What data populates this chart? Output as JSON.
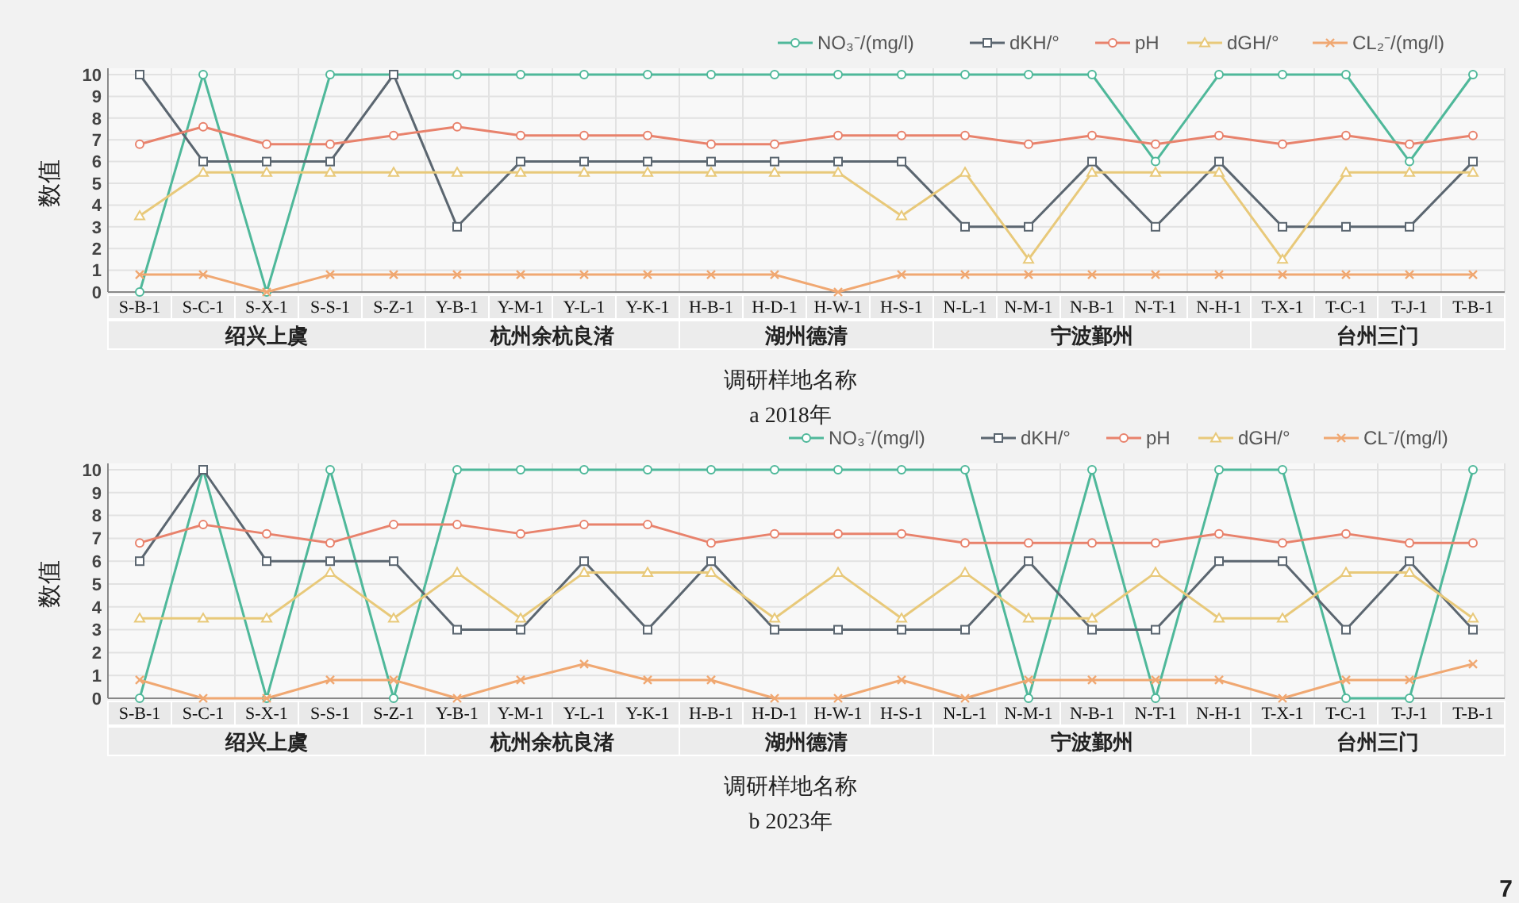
{
  "chart_data": [
    {
      "type": "line",
      "title": "a  2018年",
      "xlabel": "调研样地名称",
      "ylabel": "数值",
      "categories": [
        "S-B-1",
        "S-C-1",
        "S-X-1",
        "S-S-1",
        "S-Z-1",
        "Y-B-1",
        "Y-M-1",
        "Y-L-1",
        "Y-K-1",
        "H-B-1",
        "H-D-1",
        "H-W-1",
        "H-S-1",
        "N-L-1",
        "N-M-1",
        "N-B-1",
        "N-T-1",
        "N-H-1",
        "T-X-1",
        "T-C-1",
        "T-J-1",
        "T-B-1"
      ],
      "ylim": [
        0,
        10
      ],
      "yticks": [
        0,
        1,
        2,
        3,
        4,
        5,
        6,
        7,
        8,
        9,
        10
      ],
      "grid": true,
      "legend": "top right",
      "annotations": [
        "绍兴上虞",
        "杭州余杭良渚",
        "湖州德清",
        "宁波鄞州",
        "台州三门"
      ],
      "series": [
        {
          "name": "NO₃⁻/(mg/l)",
          "color": "#4fb89a",
          "marker": "circle",
          "values": [
            0,
            10,
            0,
            10,
            10,
            10,
            10,
            10,
            10,
            10,
            10,
            10,
            10,
            10,
            10,
            10,
            6,
            10,
            10,
            10,
            6,
            10
          ]
        },
        {
          "name": "dKH/°",
          "color": "#5b6670",
          "marker": "square",
          "values": [
            10,
            6,
            6,
            6,
            10,
            3,
            6,
            6,
            6,
            6,
            6,
            6,
            6,
            3,
            3,
            6,
            3,
            6,
            3,
            3,
            3,
            6
          ]
        },
        {
          "name": "pH",
          "color": "#e8826c",
          "marker": "circle",
          "values": [
            6.8,
            7.6,
            6.8,
            6.8,
            7.2,
            7.6,
            7.2,
            7.2,
            7.2,
            6.8,
            6.8,
            7.2,
            7.2,
            7.2,
            6.8,
            7.2,
            6.8,
            7.2,
            6.8,
            7.2,
            6.8,
            7.2
          ]
        },
        {
          "name": "dGH/°",
          "color": "#e8c97a",
          "marker": "triangle",
          "values": [
            3.5,
            5.5,
            5.5,
            5.5,
            5.5,
            5.5,
            5.5,
            5.5,
            5.5,
            5.5,
            5.5,
            5.5,
            3.5,
            5.5,
            1.5,
            5.5,
            5.5,
            5.5,
            1.5,
            5.5,
            5.5,
            5.5
          ]
        },
        {
          "name": "CL₂⁻/(mg/l)",
          "color": "#f0a872",
          "marker": "cross",
          "values": [
            0.8,
            0.8,
            0,
            0.8,
            0.8,
            0.8,
            0.8,
            0.8,
            0.8,
            0.8,
            0.8,
            0,
            0.8,
            0.8,
            0.8,
            0.8,
            0.8,
            0.8,
            0.8,
            0.8,
            0.8,
            0.8
          ]
        }
      ]
    },
    {
      "type": "line",
      "title": "b  2023年",
      "xlabel": "调研样地名称",
      "ylabel": "数值",
      "categories": [
        "S-B-1",
        "S-C-1",
        "S-X-1",
        "S-S-1",
        "S-Z-1",
        "Y-B-1",
        "Y-M-1",
        "Y-L-1",
        "Y-K-1",
        "H-B-1",
        "H-D-1",
        "H-W-1",
        "H-S-1",
        "N-L-1",
        "N-M-1",
        "N-B-1",
        "N-T-1",
        "N-H-1",
        "T-X-1",
        "T-C-1",
        "T-J-1",
        "T-B-1"
      ],
      "ylim": [
        0,
        10
      ],
      "yticks": [
        0,
        1,
        2,
        3,
        4,
        5,
        6,
        7,
        8,
        9,
        10
      ],
      "grid": true,
      "legend": "top right",
      "annotations": [
        "绍兴上虞",
        "杭州余杭良渚",
        "湖州德清",
        "宁波鄞州",
        "台州三门",
        "7"
      ],
      "series": [
        {
          "name": "NO₃⁻/(mg/l)",
          "color": "#4fb89a",
          "marker": "circle",
          "values": [
            0,
            10,
            0,
            10,
            0,
            10,
            10,
            10,
            10,
            10,
            10,
            10,
            10,
            10,
            0,
            10,
            0,
            10,
            10,
            0,
            0,
            10
          ]
        },
        {
          "name": "dKH/°",
          "color": "#5b6670",
          "marker": "square",
          "values": [
            6,
            10,
            6,
            6,
            6,
            3,
            3,
            6,
            3,
            6,
            3,
            3,
            3,
            3,
            6,
            3,
            3,
            6,
            6,
            3,
            6,
            3
          ]
        },
        {
          "name": "pH",
          "color": "#e8826c",
          "marker": "circle",
          "values": [
            6.8,
            7.6,
            7.2,
            6.8,
            7.6,
            7.6,
            7.2,
            7.6,
            7.6,
            6.8,
            7.2,
            7.2,
            7.2,
            6.8,
            6.8,
            6.8,
            6.8,
            7.2,
            6.8,
            7.2,
            6.8,
            6.8
          ]
        },
        {
          "name": "dGH/°",
          "color": "#e8c97a",
          "marker": "triangle",
          "values": [
            3.5,
            3.5,
            3.5,
            5.5,
            3.5,
            5.5,
            3.5,
            5.5,
            5.5,
            5.5,
            3.5,
            5.5,
            3.5,
            5.5,
            3.5,
            3.5,
            5.5,
            3.5,
            3.5,
            5.5,
            5.5,
            3.5
          ]
        },
        {
          "name": "CL⁻/(mg/l)",
          "color": "#f0a872",
          "marker": "cross",
          "values": [
            0.8,
            0,
            0,
            0.8,
            0.8,
            0,
            0.8,
            1.5,
            0.8,
            0.8,
            0,
            0,
            0.8,
            0,
            0.8,
            0.8,
            0.8,
            0.8,
            0,
            0.8,
            0.8,
            1.5
          ]
        }
      ]
    }
  ]
}
